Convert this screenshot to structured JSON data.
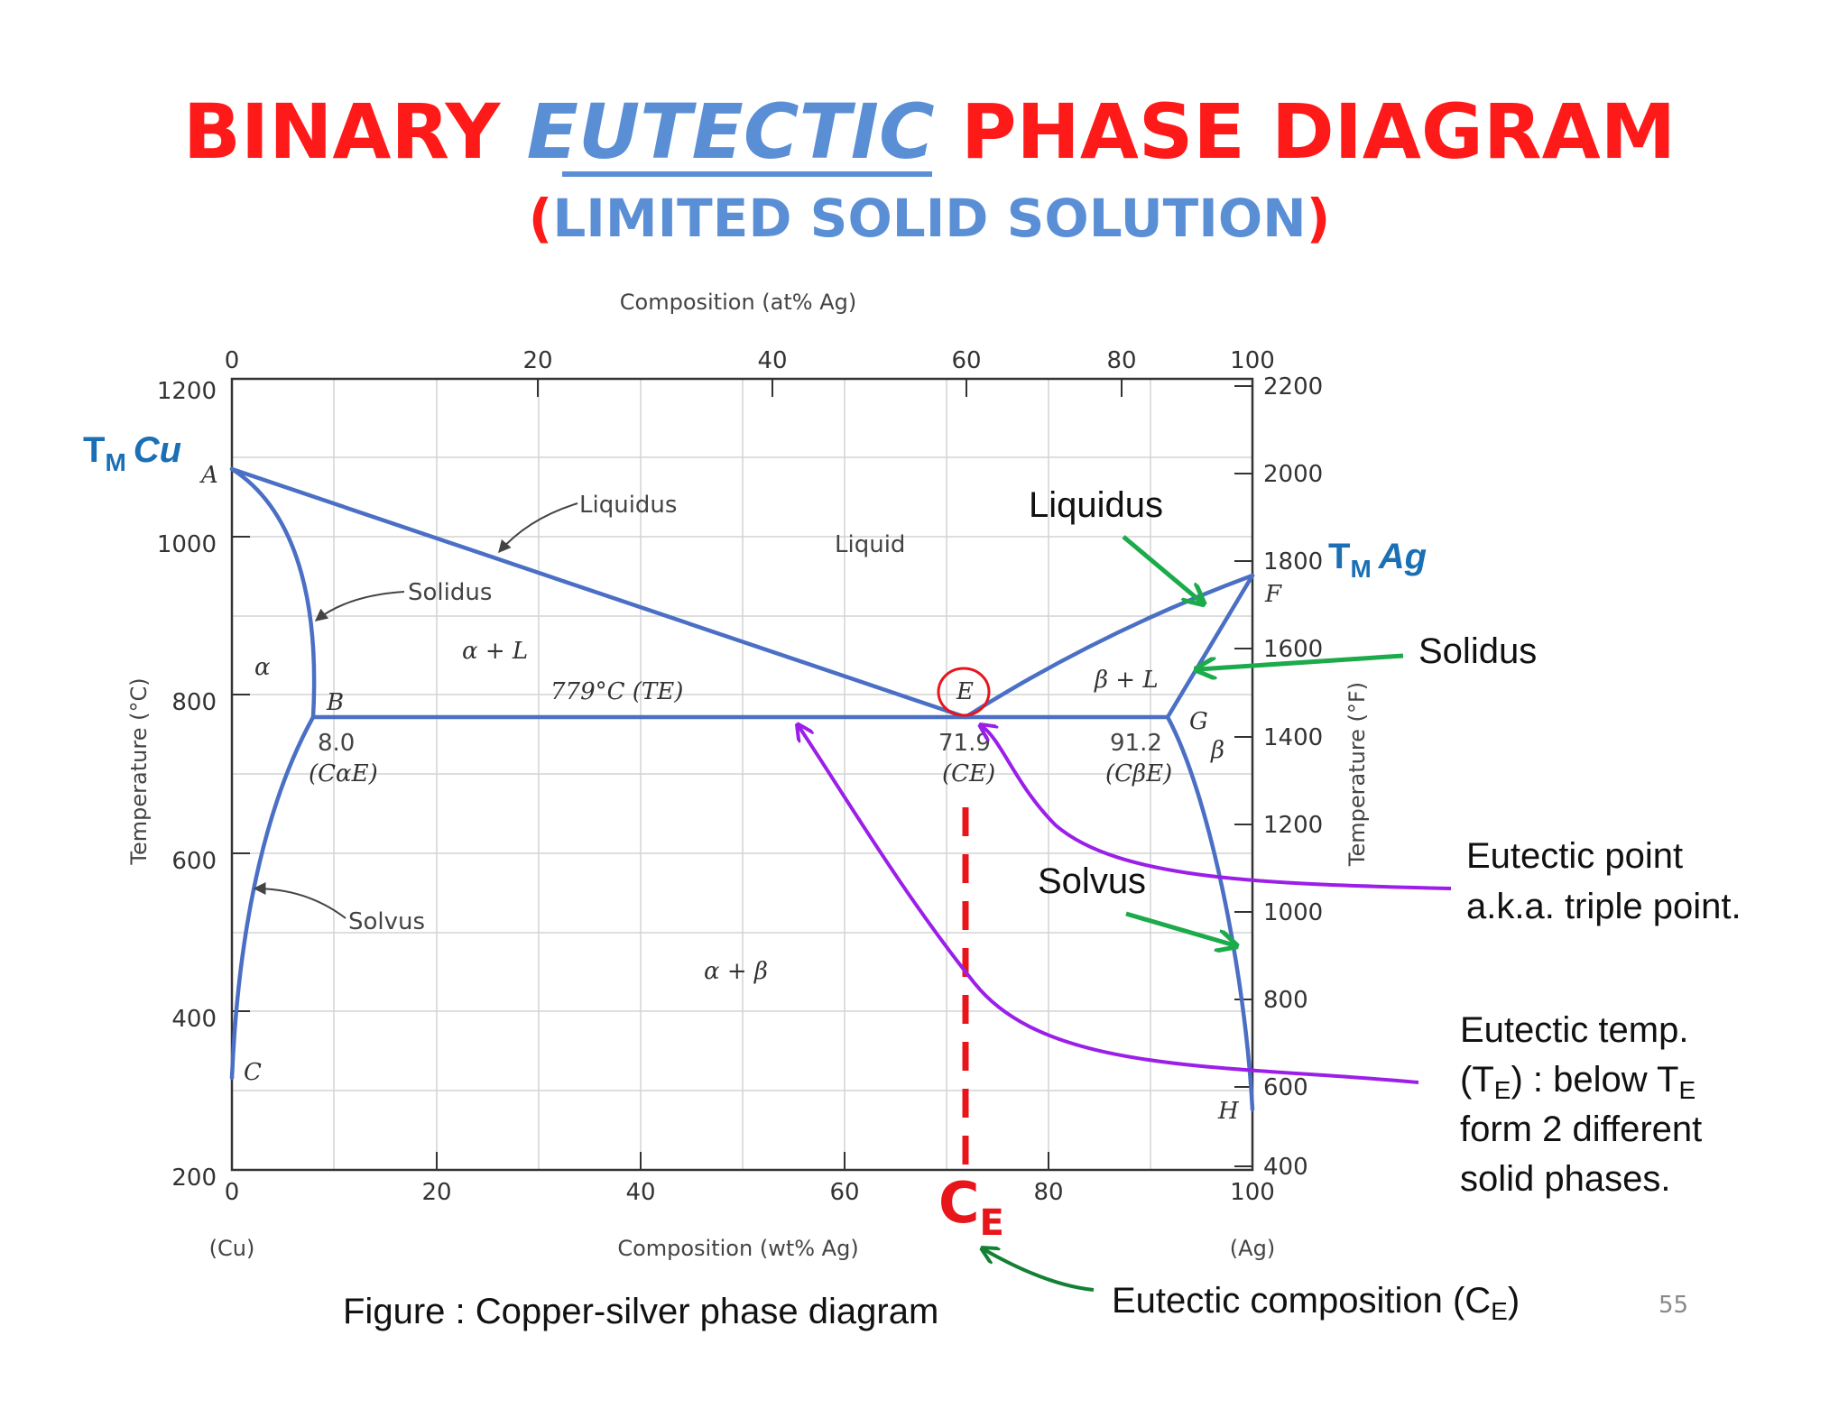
{
  "title": {
    "part1": "BINARY ",
    "part2": "EUTECTIC",
    "part3": " PHASE DIAGRAM",
    "subtitle_open": "(",
    "subtitle": "LIMITED SOLID SOLUTION",
    "subtitle_close": ")"
  },
  "colors": {
    "title_red": "#ff1a1a",
    "title_blue": "#5a8fd6",
    "curve_blue": "#4a6fc4",
    "arrow_green": "#1bab4b",
    "arrow_purple": "#9b1fe8",
    "marker_red": "#e8151b",
    "tm_blue": "#1a6fb5"
  },
  "chart": {
    "top_axis_label": "Composition (at% Ag)",
    "bottom_axis_label": "Composition (wt% Ag)",
    "left_axis_label": "Temperature (°C)",
    "right_axis_label": "Temperature (°F)",
    "bottom_left_end": "(Cu)",
    "bottom_right_end": "(Ag)",
    "bottom_ticks": [
      "0",
      "20",
      "40",
      "60",
      "80",
      "100"
    ],
    "top_ticks": [
      "0",
      "20",
      "40",
      "60",
      "80",
      "100"
    ],
    "left_ticks": [
      "1200",
      "1000",
      "800",
      "600",
      "400",
      "200"
    ],
    "right_ticks": [
      "2200",
      "2000",
      "1800",
      "1600",
      "1400",
      "1200",
      "1000",
      "800",
      "600",
      "400"
    ],
    "point_labels": {
      "A": "A",
      "B": "B",
      "C": "C",
      "E": "E",
      "F": "F",
      "G": "G",
      "H": "H"
    },
    "region_labels": {
      "liquid": "Liquid",
      "alpha": "α",
      "alpha_l": "α + L",
      "beta_l": "β + L",
      "beta": "β",
      "alpha_beta": "α + β"
    },
    "line_labels": {
      "liquidus": "Liquidus",
      "solidus": "Solidus",
      "solvus": "Solvus",
      "eutectic_temp": "779°C (TE)"
    },
    "values": {
      "cae_value": "8.0",
      "cae_label": "(CαE)",
      "ce_value": "71.9",
      "ce_label": "(CE)",
      "cbe_value": "91.2",
      "cbe_label": "(CβE)"
    }
  },
  "annotations": {
    "tm_cu": {
      "t": "T",
      "sub": "M",
      "elem": "Cu"
    },
    "tm_ag": {
      "t": "T",
      "sub": "M",
      "elem": "Ag"
    },
    "liquidus": "Liquidus",
    "solidus": "Solidus",
    "solvus": "Solvus",
    "eutectic_point_1": "Eutectic point",
    "eutectic_point_2": "a.k.a. triple point.",
    "eutectic_temp_1": "Eutectic temp.",
    "eutectic_temp_2a": "(T",
    "eutectic_temp_2sub": "E",
    "eutectic_temp_2b": ") : below T",
    "eutectic_temp_2sub2": "E",
    "eutectic_temp_3": "form 2 different",
    "eutectic_temp_4": "solid phases.",
    "ce_marker": "C",
    "ce_marker_sub": "E",
    "eutectic_comp_a": "Eutectic composition (C",
    "eutectic_comp_sub": "E",
    "eutectic_comp_b": ")",
    "figure_caption": "Figure : Copper-silver phase diagram",
    "page_number": "55"
  }
}
